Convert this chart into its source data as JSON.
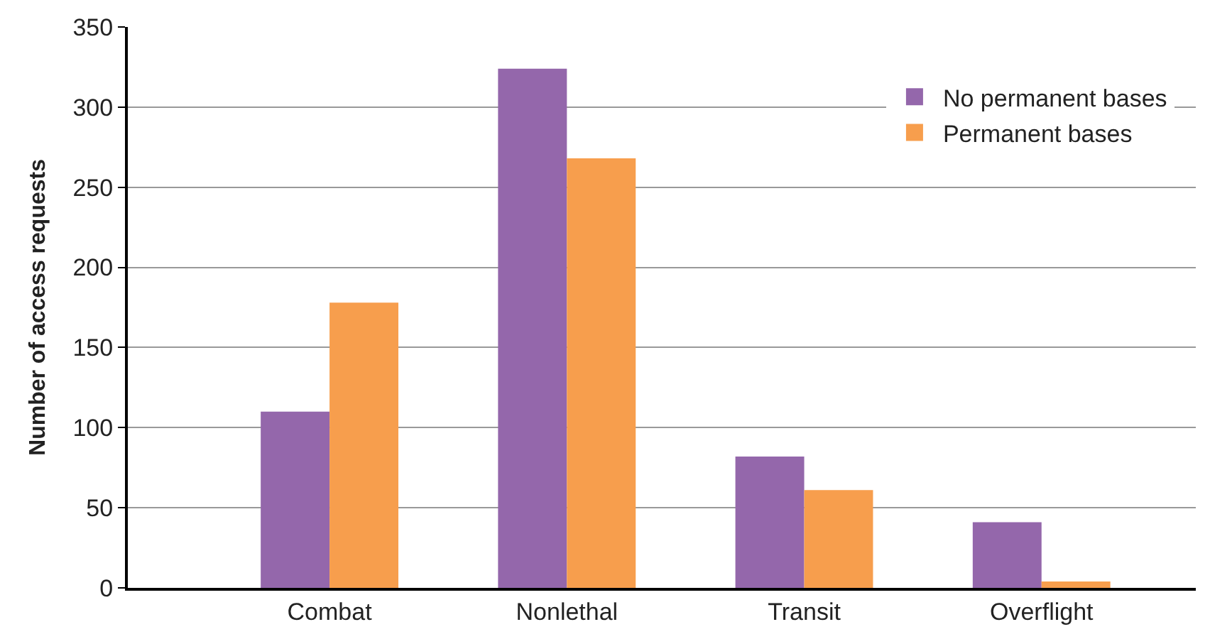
{
  "chart_data": {
    "type": "bar",
    "ylabel": "Number of access requests",
    "categories": [
      "Combat",
      "Nonlethal",
      "Transit",
      "Overflight"
    ],
    "series": [
      {
        "name": "No permanent bases",
        "color": "#9467ab",
        "values": [
          110,
          324,
          82,
          41
        ]
      },
      {
        "name": "Permanent bases",
        "color": "#f79e4d",
        "values": [
          178,
          268,
          61,
          4
        ]
      }
    ],
    "ylim": [
      0,
      350
    ],
    "yticks": [
      0,
      50,
      100,
      150,
      200,
      250,
      300,
      350
    ],
    "grid": "y",
    "legend": "top right"
  }
}
